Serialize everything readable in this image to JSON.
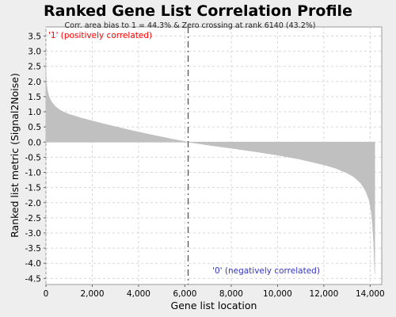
{
  "chart_data": {
    "type": "area",
    "title": "Ranked Gene List Correlation Profile",
    "xlabel": "Gene list location",
    "ylabel": "Ranked list metric (Signal2Noise)",
    "annotation": "Corr. area bias to 1 = 44.3% & Zero crossing at rank 6140 (43.2%)",
    "positive_label": "'1' (positively correlated)",
    "negative_label": "'0' (negatively correlated)",
    "xlim": [
      0,
      14500
    ],
    "ylim": [
      -4.7,
      3.8
    ],
    "zero_crossing": 6140,
    "x_ticks": [
      "0",
      "2,000",
      "4,000",
      "6,000",
      "8,000",
      "10,000",
      "12,000",
      "14,000"
    ],
    "y_ticks": [
      "3.5",
      "3.0",
      "2.5",
      "2.0",
      "1.5",
      "1.0",
      "0.5",
      "0.0",
      "-0.5",
      "-1.0",
      "-1.5",
      "-2.0",
      "-2.5",
      "-3.0",
      "-3.5",
      "-4.0",
      "-4.5"
    ],
    "grid": true,
    "colors": {
      "fill": "#c0c0c0",
      "positive": "#ff0000",
      "negative": "#3333cc",
      "zero_line": "#555555"
    },
    "series": [
      {
        "x": [
          0,
          20,
          60,
          120,
          200,
          300,
          400,
          600,
          800,
          1000,
          1500,
          2000,
          2500,
          3000,
          3500,
          4000,
          4500,
          5000,
          5500,
          6000,
          6140,
          6500,
          7000,
          7500,
          8000,
          8500,
          9000,
          9500,
          10000,
          10500,
          11000,
          11500,
          12000,
          12500,
          13000,
          13300,
          13600,
          13800,
          13950,
          14050,
          14100,
          14150,
          14200
        ],
        "values": [
          2.6,
          2.0,
          1.72,
          1.52,
          1.38,
          1.27,
          1.18,
          1.06,
          0.98,
          0.92,
          0.8,
          0.7,
          0.6,
          0.51,
          0.42,
          0.33,
          0.25,
          0.17,
          0.09,
          0.02,
          0.0,
          -0.04,
          -0.1,
          -0.15,
          -0.2,
          -0.26,
          -0.31,
          -0.37,
          -0.43,
          -0.5,
          -0.57,
          -0.66,
          -0.75,
          -0.86,
          -1.02,
          -1.15,
          -1.36,
          -1.6,
          -1.9,
          -2.3,
          -2.7,
          -3.3,
          -4.35
        ]
      }
    ]
  }
}
